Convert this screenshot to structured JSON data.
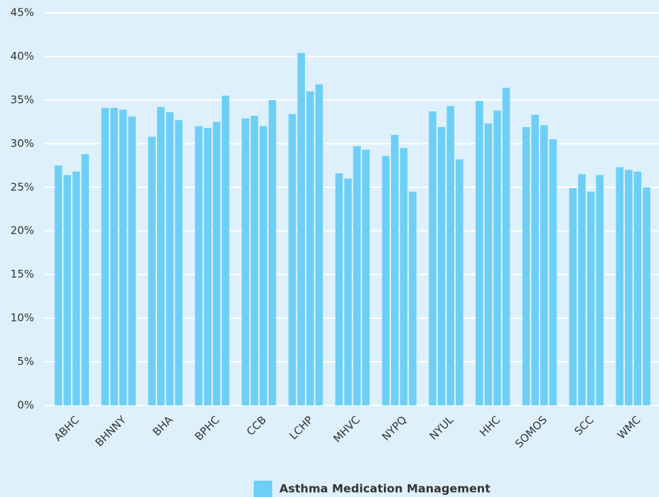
{
  "chart_data": {
    "type": "grouped-bar",
    "categories": [
      "ABHC",
      "BHNNY",
      "BHA",
      "BPHC",
      "CCB",
      "LCHP",
      "MHVC",
      "NYPQ",
      "NYUL",
      "HHC",
      "SOMOS",
      "SCC",
      "WMC"
    ],
    "series": [
      {
        "name": "Asthma Medication Management",
        "color": "#6dcff6",
        "values": [
          [
            27.5,
            26.4,
            26.8,
            28.8
          ],
          [
            34.1,
            34.1,
            33.9,
            33.1
          ],
          [
            30.8,
            34.2,
            33.6,
            32.7
          ],
          [
            32.0,
            31.8,
            32.5,
            35.5
          ],
          [
            32.9,
            33.2,
            32.0,
            35.0
          ],
          [
            33.4,
            40.4,
            36.0,
            36.8
          ],
          [
            26.6,
            26.0,
            29.7,
            29.3
          ],
          [
            28.6,
            31.0,
            29.5,
            24.5
          ],
          [
            33.7,
            31.9,
            34.3,
            28.2
          ],
          [
            34.9,
            32.3,
            33.8,
            36.4
          ],
          [
            31.9,
            33.3,
            32.1,
            30.5
          ],
          [
            24.9,
            26.5,
            24.5,
            26.4
          ],
          [
            27.3,
            27.0,
            26.8,
            25.0
          ]
        ]
      }
    ],
    "ylim": [
      0,
      45
    ],
    "yticks": [
      {
        "value": 0,
        "label": "0%"
      },
      {
        "value": 5,
        "label": "5%"
      },
      {
        "value": 10,
        "label": "10%"
      },
      {
        "value": 15,
        "label": "15%"
      },
      {
        "value": 20,
        "label": "20%"
      },
      {
        "value": 25,
        "label": "25%"
      },
      {
        "value": 30,
        "label": "30%"
      },
      {
        "value": 35,
        "label": "35%"
      },
      {
        "value": 40,
        "label": "40%"
      },
      {
        "value": 45,
        "label": "45%"
      }
    ],
    "grid": true,
    "legend": "bottom"
  }
}
